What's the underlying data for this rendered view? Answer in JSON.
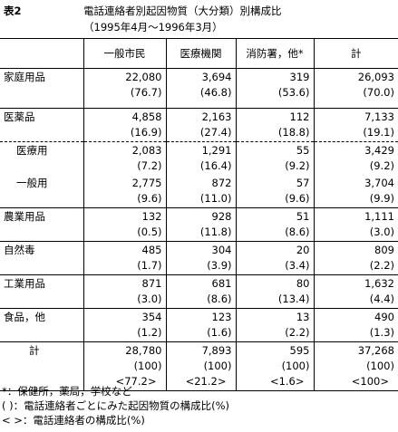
{
  "header": {
    "label": "表2",
    "title": "電話連絡者別起因物質（大分類）別構成比",
    "subtitle": "（1995年4月～1996年3月）"
  },
  "table": {
    "columns": [
      "一般市民",
      "医療機関",
      "消防署，他*",
      "計"
    ],
    "rows": [
      {
        "label": "家庭用品",
        "cells": [
          [
            "22,080",
            "(76.7)"
          ],
          [
            "3,694",
            "(46.8)"
          ],
          [
            "319",
            "(53.6)"
          ],
          [
            "26,093",
            "(70.0)"
          ]
        ]
      },
      {
        "label": "医薬品",
        "cells": [
          [
            "4,858",
            "(16.9)"
          ],
          [
            "2,163",
            "(27.4)"
          ],
          [
            "112",
            "(18.8)"
          ],
          [
            "7,133",
            "(19.1)"
          ]
        ]
      },
      {
        "label": "医療用",
        "cells": [
          [
            "2,083",
            "(7.2)"
          ],
          [
            "1,291",
            "(16.4)"
          ],
          [
            "55",
            "(9.2)"
          ],
          [
            "3,429",
            "(9.2)"
          ]
        ]
      },
      {
        "label": "一般用",
        "cells": [
          [
            "2,775",
            "(9.6)"
          ],
          [
            "872",
            "(11.0)"
          ],
          [
            "57",
            "(9.6)"
          ],
          [
            "3,704",
            "(9.9)"
          ]
        ]
      },
      {
        "label": "農業用品",
        "cells": [
          [
            "132",
            "(0.5)"
          ],
          [
            "928",
            "(11.8)"
          ],
          [
            "51",
            "(8.6)"
          ],
          [
            "1,111",
            "(3.0)"
          ]
        ]
      },
      {
        "label": "自然毒",
        "cells": [
          [
            "485",
            "(1.7)"
          ],
          [
            "304",
            "(3.9)"
          ],
          [
            "20",
            "(3.4)"
          ],
          [
            "809",
            "(2.2)"
          ]
        ]
      },
      {
        "label": "工業用品",
        "cells": [
          [
            "871",
            "(3.0)"
          ],
          [
            "681",
            "(8.6)"
          ],
          [
            "80",
            "(13.4)"
          ],
          [
            "1,632",
            "(4.4)"
          ]
        ]
      },
      {
        "label": "食品，他",
        "cells": [
          [
            "354",
            "(1.2)"
          ],
          [
            "123",
            "(1.6)"
          ],
          [
            "13",
            "(2.2)"
          ],
          [
            "490",
            "(1.3)"
          ]
        ]
      },
      {
        "label": "計",
        "cells": [
          [
            "28,780",
            "(100)",
            "<77.2>"
          ],
          [
            "7,893",
            "(100)",
            "<21.2>"
          ],
          [
            "595",
            "(100)",
            "<1.6>"
          ],
          [
            "37,268",
            "(100)",
            "<100>"
          ]
        ]
      }
    ]
  },
  "notes": [
    "*：保健所，薬局，学校など",
    "(  )：電話連絡者ごとにみた起因物質の構成比(%)",
    "<  >：電話連絡者の構成比(%)"
  ]
}
